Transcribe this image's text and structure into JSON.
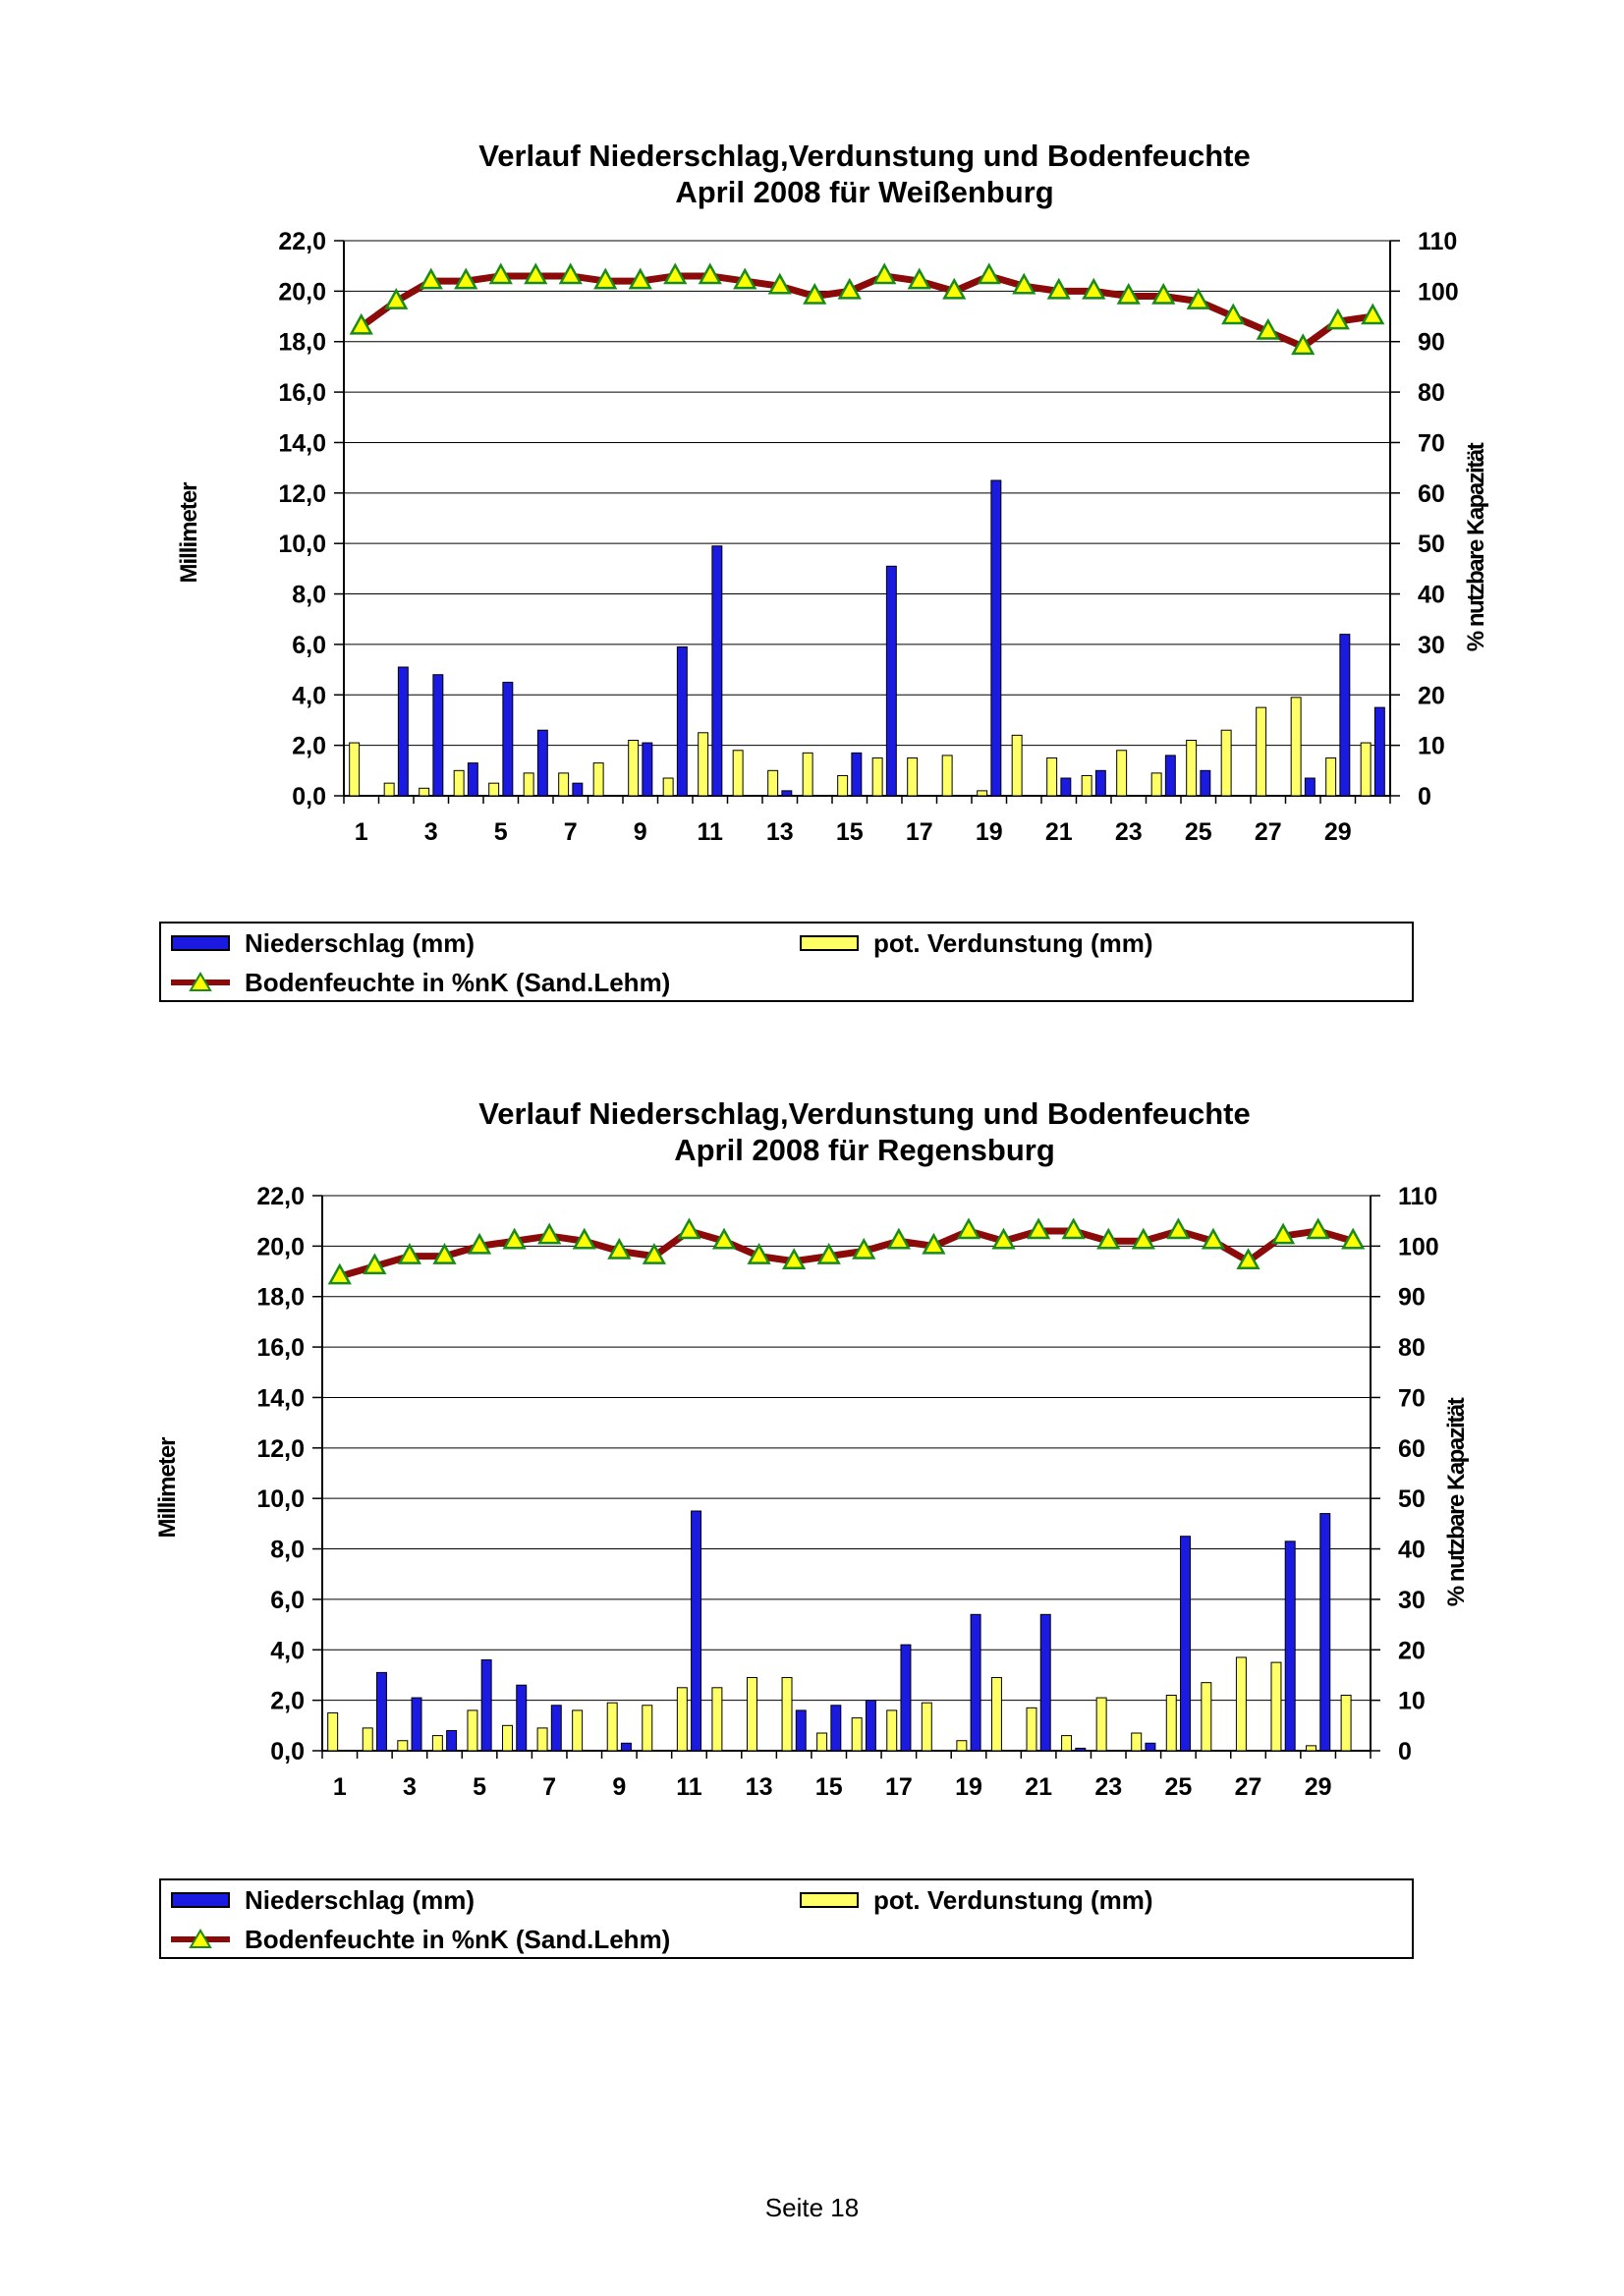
{
  "legend": {
    "precip": "Niederschlag (mm)",
    "evap": "pot. Verdunstung (mm)",
    "soil": "Bodenfeuchte in %nK (Sand.Lehm)"
  },
  "colors": {
    "precip": "#1a1ae0",
    "evap": "#ffff66",
    "soil_line": "#8b0a0a",
    "soil_marker": "#ffff00",
    "soil_marker_inner": "#1a8a1a"
  },
  "page": {
    "number": "Seite 18"
  },
  "chart_data": [
    {
      "type": "bar",
      "title_line1": "Verlauf Niederschlag,Verdunstung und Bodenfeuchte",
      "title_line2": "April 2008 für Weißenburg",
      "ylabel": "Millimeter",
      "y2label": "% nutzbare Kapazität",
      "ylim": [
        0,
        22
      ],
      "y2lim": [
        0,
        110
      ],
      "yticks": [
        "0,0",
        "2,0",
        "4,0",
        "6,0",
        "8,0",
        "10,0",
        "12,0",
        "14,0",
        "16,0",
        "18,0",
        "20,0",
        "22,0"
      ],
      "y2ticks": [
        "0",
        "10",
        "20",
        "30",
        "40",
        "50",
        "60",
        "70",
        "80",
        "90",
        "100",
        "110"
      ],
      "xticks": [
        "1",
        "3",
        "5",
        "7",
        "9",
        "11",
        "13",
        "15",
        "17",
        "19",
        "21",
        "23",
        "25",
        "27",
        "29"
      ],
      "days": [
        1,
        2,
        3,
        4,
        5,
        6,
        7,
        8,
        9,
        10,
        11,
        12,
        13,
        14,
        15,
        16,
        17,
        18,
        19,
        20,
        21,
        22,
        23,
        24,
        25,
        26,
        27,
        28,
        29,
        30
      ],
      "precip": [
        0,
        5.1,
        4.8,
        1.3,
        4.5,
        2.6,
        0.5,
        0,
        2.1,
        5.9,
        9.9,
        0,
        0.2,
        0,
        1.7,
        9.1,
        0,
        0,
        12.5,
        0,
        0.7,
        1.0,
        0,
        1.6,
        1.0,
        0,
        0,
        0.7,
        6.4,
        3.5
      ],
      "evap": [
        2.1,
        0.5,
        0.3,
        1.0,
        0.5,
        0.9,
        0.9,
        1.3,
        2.2,
        0.7,
        2.5,
        1.8,
        1.0,
        1.7,
        0.8,
        1.5,
        1.5,
        1.6,
        0.2,
        2.4,
        1.5,
        0.8,
        1.8,
        0.9,
        2.2,
        2.6,
        3.5,
        3.9,
        1.5,
        2.1
      ],
      "soil": [
        93,
        98,
        102,
        102,
        103,
        103,
        103,
        102,
        102,
        103,
        103,
        102,
        101,
        99,
        100,
        103,
        102,
        100,
        103,
        101,
        100,
        100,
        99,
        99,
        98,
        95,
        92,
        89,
        94,
        95
      ]
    },
    {
      "type": "bar",
      "title_line1": "Verlauf Niederschlag,Verdunstung und Bodenfeuchte",
      "title_line2": "April 2008 für Regensburg",
      "ylabel": "Millimeter",
      "y2label": "% nutzbare Kapazität",
      "ylim": [
        0,
        22
      ],
      "y2lim": [
        0,
        110
      ],
      "yticks": [
        "0,0",
        "2,0",
        "4,0",
        "6,0",
        "8,0",
        "10,0",
        "12,0",
        "14,0",
        "16,0",
        "18,0",
        "20,0",
        "22,0"
      ],
      "y2ticks": [
        "0",
        "10",
        "20",
        "30",
        "40",
        "50",
        "60",
        "70",
        "80",
        "90",
        "100",
        "110"
      ],
      "xticks": [
        "1",
        "3",
        "5",
        "7",
        "9",
        "11",
        "13",
        "15",
        "17",
        "19",
        "21",
        "23",
        "25",
        "27",
        "29"
      ],
      "days": [
        1,
        2,
        3,
        4,
        5,
        6,
        7,
        8,
        9,
        10,
        11,
        12,
        13,
        14,
        15,
        16,
        17,
        18,
        19,
        20,
        21,
        22,
        23,
        24,
        25,
        26,
        27,
        28,
        29,
        30
      ],
      "precip": [
        0,
        3.1,
        2.1,
        0.8,
        3.6,
        2.6,
        1.8,
        0,
        0.3,
        0,
        9.5,
        0,
        0,
        1.6,
        1.8,
        2.0,
        4.2,
        0,
        5.4,
        0,
        5.4,
        0.1,
        0,
        0.3,
        8.5,
        0,
        0,
        8.3,
        9.4,
        0
      ],
      "evap": [
        1.5,
        0.9,
        0.4,
        0.6,
        1.6,
        1.0,
        0.9,
        1.6,
        1.9,
        1.8,
        2.5,
        2.5,
        2.9,
        2.9,
        0.7,
        1.3,
        1.6,
        1.9,
        0.4,
        2.9,
        1.7,
        0.6,
        2.1,
        0.7,
        2.2,
        2.7,
        3.7,
        3.5,
        0.2,
        2.2
      ],
      "soil": [
        94,
        96,
        98,
        98,
        100,
        101,
        102,
        101,
        99,
        98,
        103,
        101,
        98,
        97,
        98,
        99,
        101,
        100,
        103,
        101,
        103,
        103,
        101,
        101,
        103,
        101,
        97,
        102,
        103,
        101
      ]
    }
  ]
}
